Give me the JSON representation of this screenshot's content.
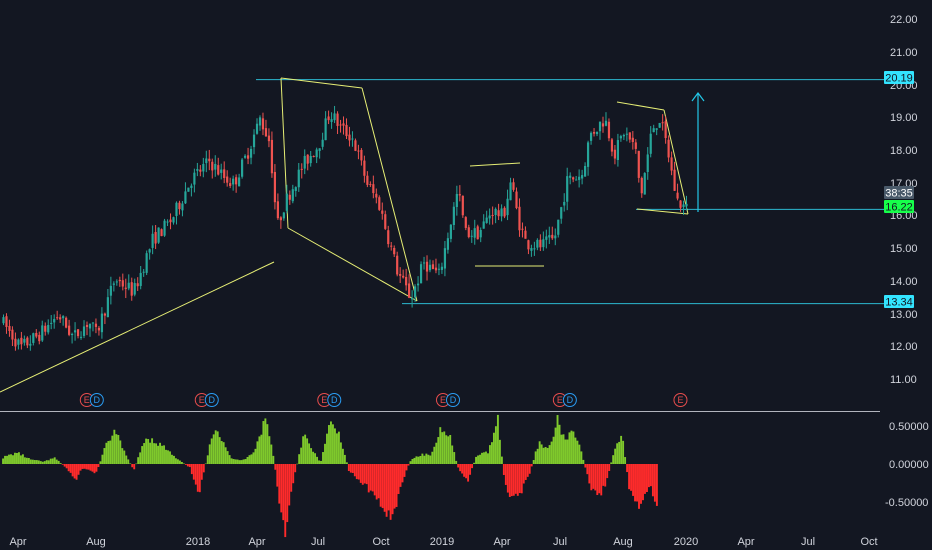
{
  "colors": {
    "background": "#131722",
    "up": "#26a69a",
    "down": "#ef5350",
    "drawing": "#e6ee75",
    "horizontal_line": "#2bb8d1",
    "projection_arrow": "#22c8e8",
    "label_tag_cyan": "#33e4ff",
    "label_tag_green": "#16ff4a",
    "oscillator_up": "#7fc92c",
    "oscillator_down": "#ff2b2b",
    "axis_text": "#d1d4dc",
    "pane_separator": "#b2b5be",
    "event_earnings": "#e84d4d",
    "event_dividend": "#2a9df4"
  },
  "chart_data": [
    {
      "type": "candlestick",
      "title": "",
      "price_axis": {
        "ticks": [
          "22.00",
          "21.00",
          "20.00",
          "19.00",
          "18.00",
          "17.00",
          "16.00",
          "15.00",
          "14.00",
          "13.00",
          "12.00",
          "11.00"
        ],
        "ylim": [
          10.25,
          22.5
        ]
      },
      "time_axis": {
        "ticks": [
          "Apr",
          "Aug",
          "2018",
          "Apr",
          "Jul",
          "Oct",
          "2019",
          "Apr",
          "Jul",
          "Aug",
          "2020",
          "Apr",
          "Jul",
          "Oct"
        ]
      },
      "price_path": [
        [
          0.0,
          12.8
        ],
        [
          1.0,
          12.0
        ],
        [
          2.0,
          12.4
        ],
        [
          3.0,
          13.0
        ],
        [
          3.8,
          12.3
        ],
        [
          4.6,
          12.8
        ],
        [
          5.0,
          12.4
        ],
        [
          6.0,
          14.1
        ],
        [
          7.0,
          13.7
        ],
        [
          8.0,
          15.3
        ],
        [
          9.0,
          15.9
        ],
        [
          10.0,
          17.1
        ],
        [
          11.0,
          17.7
        ],
        [
          11.8,
          17.2
        ],
        [
          12.3,
          17.0
        ],
        [
          13.0,
          17.9
        ],
        [
          13.7,
          19.0
        ],
        [
          14.2,
          18.3
        ],
        [
          14.6,
          15.7
        ],
        [
          15.0,
          16.4
        ],
        [
          16.0,
          17.6
        ],
        [
          16.8,
          18.2
        ],
        [
          17.4,
          19.2
        ],
        [
          18.0,
          18.7
        ],
        [
          18.6,
          18.4
        ],
        [
          19.4,
          17.0
        ],
        [
          20.0,
          16.4
        ],
        [
          21.0,
          14.3
        ],
        [
          21.7,
          13.5
        ],
        [
          22.4,
          14.6
        ],
        [
          23.2,
          14.2
        ],
        [
          23.8,
          15.8
        ],
        [
          24.2,
          16.8
        ],
        [
          24.6,
          15.5
        ],
        [
          25.3,
          15.5
        ],
        [
          26.0,
          16.2
        ],
        [
          26.6,
          16.0
        ],
        [
          27.0,
          17.1
        ],
        [
          27.4,
          15.9
        ],
        [
          27.8,
          15.2
        ],
        [
          28.6,
          15.1
        ],
        [
          29.3,
          15.3
        ],
        [
          30.0,
          17.1
        ],
        [
          30.8,
          17.3
        ],
        [
          31.2,
          18.5
        ],
        [
          32.0,
          19.0
        ],
        [
          32.5,
          17.9
        ],
        [
          33.0,
          18.6
        ],
        [
          33.6,
          18.1
        ],
        [
          33.9,
          16.6
        ],
        [
          34.5,
          18.7
        ],
        [
          34.9,
          19.0
        ],
        [
          35.3,
          18.1
        ],
        [
          35.8,
          16.5
        ],
        [
          36.4,
          16.2
        ]
      ],
      "levels": [
        {
          "label": "20.19",
          "value": 20.19
        },
        {
          "label": "16.22",
          "value": 16.22
        },
        {
          "label": "13.34",
          "value": 13.34
        }
      ],
      "countdown_label": "38:35",
      "events": [
        {
          "t": 4.5,
          "letters": [
            "E",
            "D"
          ]
        },
        {
          "t": 10.6,
          "letters": [
            "E",
            "D"
          ]
        },
        {
          "t": 17.1,
          "letters": [
            "E",
            "D"
          ]
        },
        {
          "t": 23.4,
          "letters": [
            "E",
            "D"
          ]
        },
        {
          "t": 29.6,
          "letters": [
            "E",
            "D"
          ]
        },
        {
          "t": 36.0,
          "letters": [
            "E"
          ]
        }
      ]
    },
    {
      "type": "histogram",
      "title": "",
      "value_axis": {
        "ticks": [
          "0.50000",
          "0.00000",
          "-0.50000"
        ],
        "ylim": [
          -0.95,
          0.72
        ]
      },
      "profile": [
        [
          0.0,
          0.08
        ],
        [
          0.8,
          0.15
        ],
        [
          1.5,
          0.06
        ],
        [
          2.2,
          0.03
        ],
        [
          2.8,
          0.08
        ],
        [
          3.4,
          -0.05
        ],
        [
          3.9,
          -0.2
        ],
        [
          4.3,
          -0.05
        ],
        [
          5.0,
          -0.12
        ],
        [
          5.6,
          0.3
        ],
        [
          6.0,
          0.42
        ],
        [
          6.6,
          0.1
        ],
        [
          7.0,
          -0.08
        ],
        [
          7.6,
          0.35
        ],
        [
          8.1,
          0.3
        ],
        [
          8.7,
          0.2
        ],
        [
          9.2,
          0.08
        ],
        [
          10.0,
          -0.05
        ],
        [
          10.4,
          -0.42
        ],
        [
          10.9,
          0.1
        ],
        [
          11.3,
          0.52
        ],
        [
          11.7,
          0.32
        ],
        [
          12.2,
          0.06
        ],
        [
          12.8,
          0.05
        ],
        [
          13.4,
          0.18
        ],
        [
          14.0,
          0.6
        ],
        [
          14.4,
          0.1
        ],
        [
          14.8,
          -0.65
        ],
        [
          15.0,
          -0.95
        ],
        [
          15.4,
          -0.3
        ],
        [
          16.0,
          0.4
        ],
        [
          16.4,
          0.2
        ],
        [
          16.9,
          0.02
        ],
        [
          17.4,
          0.52
        ],
        [
          17.9,
          0.4
        ],
        [
          18.4,
          -0.08
        ],
        [
          19.0,
          -0.22
        ],
        [
          19.7,
          -0.38
        ],
        [
          20.2,
          -0.55
        ],
        [
          20.7,
          -0.7
        ],
        [
          21.2,
          -0.25
        ],
        [
          21.7,
          0.06
        ],
        [
          22.2,
          0.12
        ],
        [
          22.8,
          0.12
        ],
        [
          23.3,
          0.48
        ],
        [
          23.7,
          0.42
        ],
        [
          24.2,
          -0.05
        ],
        [
          24.7,
          -0.22
        ],
        [
          25.2,
          0.12
        ],
        [
          25.8,
          0.15
        ],
        [
          26.3,
          0.62
        ],
        [
          26.7,
          -0.3
        ],
        [
          27.1,
          -0.45
        ],
        [
          27.5,
          -0.4
        ],
        [
          28.0,
          -0.12
        ],
        [
          28.5,
          0.3
        ],
        [
          29.0,
          0.18
        ],
        [
          29.5,
          0.58
        ],
        [
          29.9,
          0.3
        ],
        [
          30.3,
          0.48
        ],
        [
          30.7,
          0.2
        ],
        [
          31.2,
          -0.28
        ],
        [
          31.6,
          -0.42
        ],
        [
          32.0,
          -0.3
        ],
        [
          32.5,
          0.2
        ],
        [
          32.9,
          0.4
        ],
        [
          33.3,
          -0.35
        ],
        [
          33.8,
          -0.6
        ],
        [
          34.3,
          -0.28
        ],
        [
          34.8,
          -0.5
        ]
      ]
    }
  ]
}
